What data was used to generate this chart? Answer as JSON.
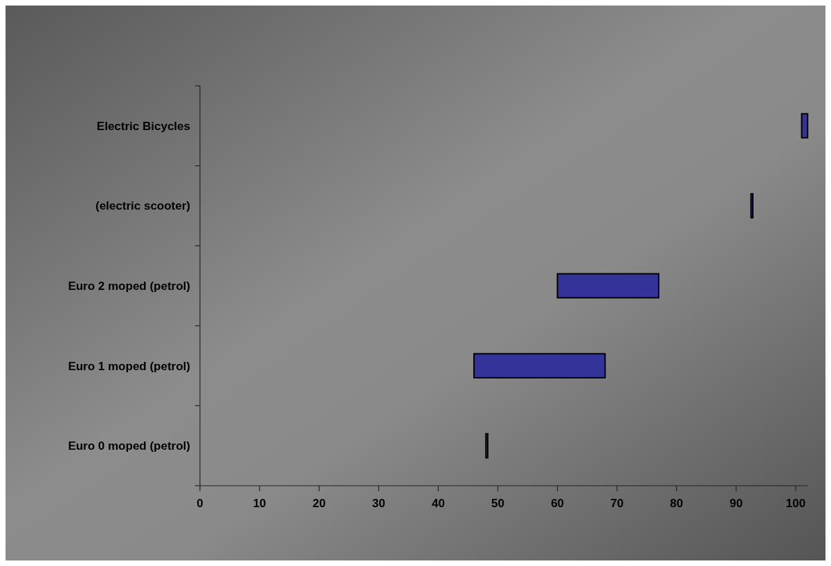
{
  "chart_data": {
    "type": "bar",
    "orientation": "horizontal",
    "categories": [
      "Electric Bicycles",
      "(electric scooter)",
      "Euro 2 moped (petrol)",
      "Euro 1 moped (petrol)",
      "Euro 0 moped (petrol)"
    ],
    "values": [
      1,
      0.3,
      17,
      22,
      0.3
    ],
    "base": [
      101,
      92.5,
      60,
      46,
      48
    ],
    "color": "#333399",
    "xlim": [
      0,
      102
    ],
    "xticks": [
      0,
      10,
      20,
      30,
      40,
      50,
      60,
      70,
      80,
      90,
      100
    ],
    "grid": false
  }
}
